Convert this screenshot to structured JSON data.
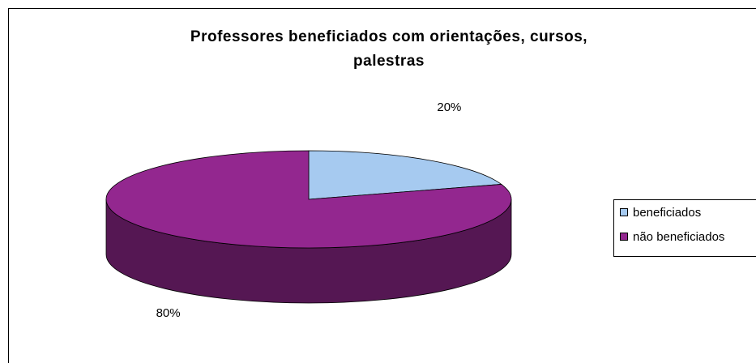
{
  "chart_data": {
    "type": "pie3d",
    "title": [
      "Professores beneficiados com orientações, cursos,",
      "palestras"
    ],
    "categories": [
      "beneficiados",
      "não beneficiados"
    ],
    "values": [
      20,
      80
    ],
    "value_labels": [
      "20%",
      "80%"
    ],
    "colors": [
      "#a6caf0",
      "#93278f"
    ],
    "legend": "right"
  }
}
